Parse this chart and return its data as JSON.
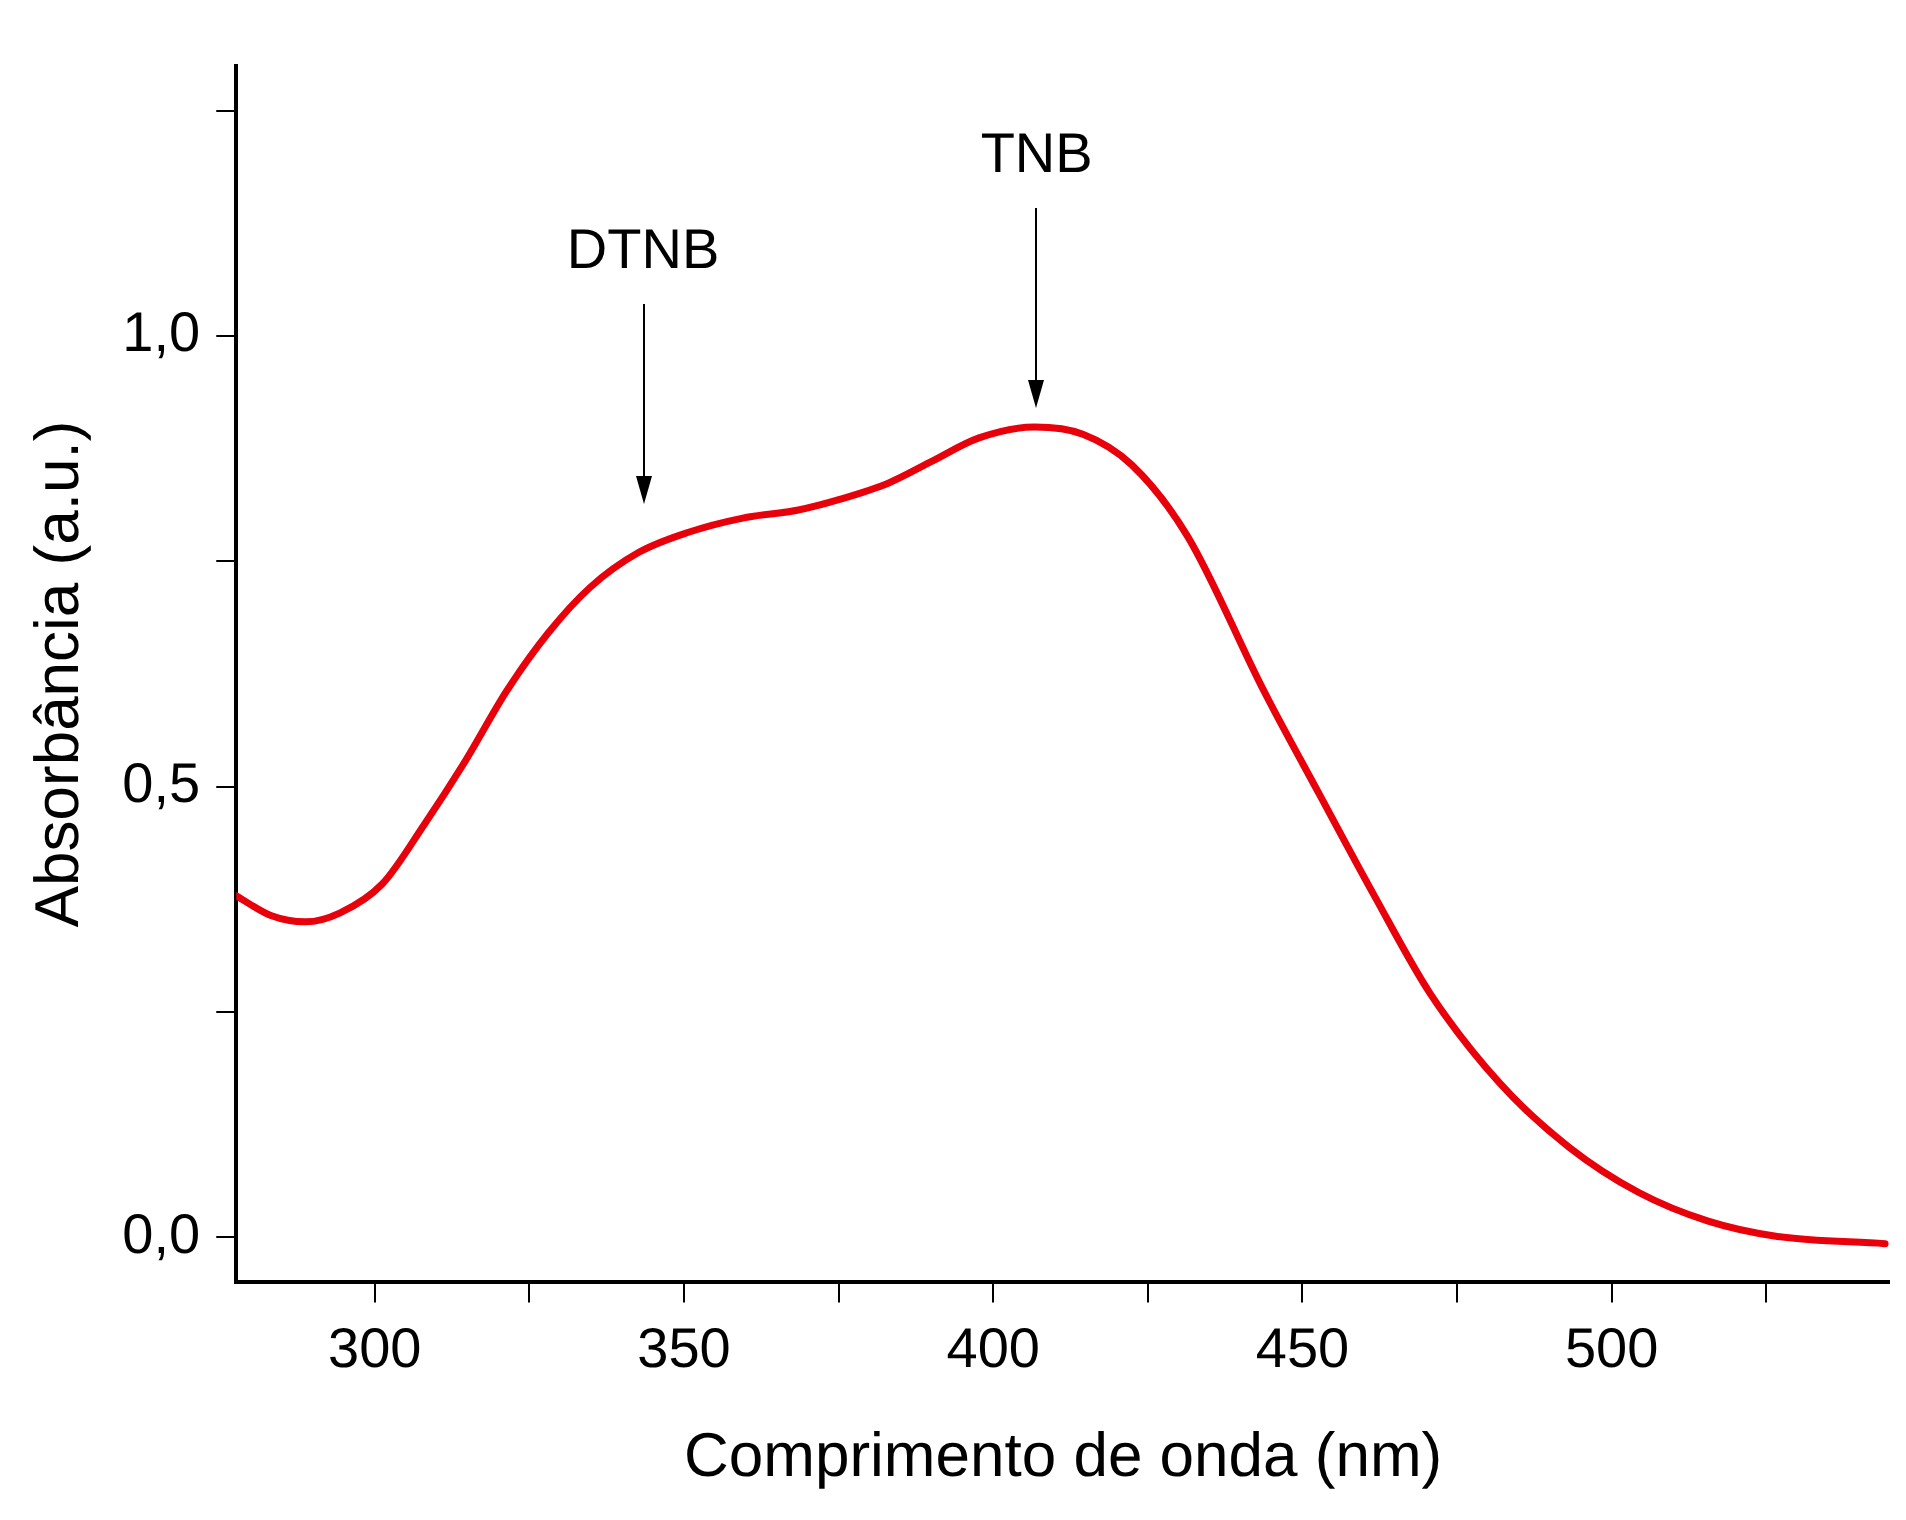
{
  "chart_data": {
    "type": "line",
    "xlabel": "Comprimento de onda (nm)",
    "ylabel": "Absorbância (a.u.)",
    "x": [
      277.6,
      283.2,
      288.8,
      294.4,
      301.2,
      307.9,
      314.6,
      321.4,
      328.1,
      334.8,
      342.7,
      350.6,
      359.5,
      368.5,
      375.3,
      383.1,
      389.8,
      397.7,
      406.7,
      414.5,
      422.4,
      431.4,
      443.7,
      452.7,
      461.7,
      470.6,
      481.9,
      493.1,
      504.3,
      515.6,
      526.8,
      544.2
    ],
    "series": [
      {
        "color": "#e8000b",
        "values": [
          0.379,
          0.357,
          0.35,
          0.36,
          0.392,
          0.457,
          0.528,
          0.607,
          0.671,
          0.721,
          0.76,
          0.782,
          0.798,
          0.807,
          0.819,
          0.837,
          0.86,
          0.887,
          0.899,
          0.891,
          0.857,
          0.778,
          0.607,
          0.492,
          0.378,
          0.271,
          0.171,
          0.1,
          0.05,
          0.018,
          0.001,
          -0.007
        ]
      }
    ],
    "xlim": [
      277.6,
      545
    ],
    "xticks": [
      300,
      {
        "value": 325,
        "label": null
      },
      350,
      {
        "value": 375,
        "label": null
      },
      400,
      {
        "value": 425,
        "label": null
      },
      450,
      {
        "value": 475,
        "label": null
      },
      500,
      {
        "value": 525,
        "label": null
      }
    ],
    "ylim": [
      -0.05,
      1.3
    ],
    "yticks": [
      {
        "value": 0,
        "label": "0,0"
      },
      {
        "value": 0.25,
        "label": null
      },
      {
        "value": 0.5,
        "label": "0,5"
      },
      {
        "value": 0.75,
        "label": null
      },
      {
        "value": 1,
        "label": "1,0"
      },
      {
        "value": 1.25,
        "label": null
      }
    ],
    "annotations": [
      "DTNB",
      "TNB"
    ],
    "grid": false,
    "legend": false,
    "marker": "none",
    "line_style": "solid"
  }
}
